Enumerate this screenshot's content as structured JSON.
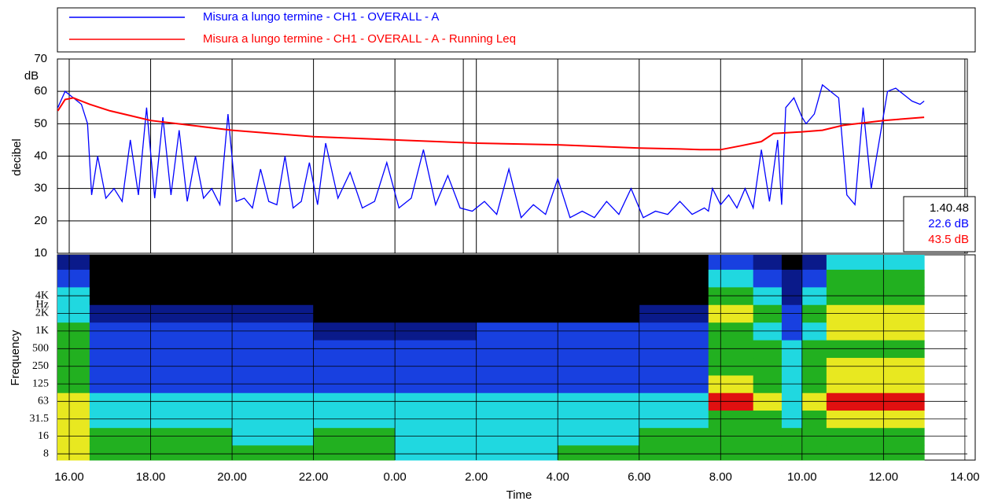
{
  "chart_data": [
    {
      "type": "line",
      "y_label": "decibel",
      "y_unit": "dB",
      "xlim": [
        -0.29,
        22.06
      ],
      "ylim": [
        10,
        70
      ],
      "yticks": [
        10,
        20,
        30,
        40,
        50,
        60,
        70
      ],
      "grid": true,
      "series": [
        {
          "name": "Misura a lungo termine - CH1 - OVERALL - A",
          "color": "#0000ff",
          "x": [
            -0.28,
            -0.1,
            0.1,
            0.3,
            0.45,
            0.55,
            0.7,
            0.9,
            1.1,
            1.3,
            1.5,
            1.7,
            1.9,
            2.1,
            2.3,
            2.5,
            2.7,
            2.9,
            3.1,
            3.3,
            3.5,
            3.7,
            3.9,
            4.1,
            4.3,
            4.5,
            4.7,
            4.9,
            5.1,
            5.3,
            5.5,
            5.7,
            5.9,
            6.1,
            6.3,
            6.6,
            6.9,
            7.2,
            7.5,
            7.8,
            8.1,
            8.4,
            8.7,
            9.0,
            9.3,
            9.6,
            9.9,
            10.2,
            10.5,
            10.8,
            11.1,
            11.4,
            11.7,
            12.0,
            12.3,
            12.6,
            12.9,
            13.2,
            13.5,
            13.8,
            14.1,
            14.4,
            14.7,
            15.0,
            15.3,
            15.6,
            15.7,
            15.8,
            16.0,
            16.2,
            16.4,
            16.6,
            16.8,
            17.0,
            17.2,
            17.4,
            17.5,
            17.6,
            17.8,
            18.0,
            18.1,
            18.3,
            18.5,
            18.7,
            18.9,
            19.1,
            19.3,
            19.5,
            19.7,
            19.9,
            20.1,
            20.3,
            20.5,
            20.7,
            20.9,
            21.0
          ],
          "values": [
            55,
            60,
            58,
            56,
            50,
            28,
            40,
            27,
            30,
            26,
            45,
            28,
            55,
            27,
            52,
            28,
            48,
            26,
            40,
            27,
            30,
            25,
            53,
            26,
            27,
            24,
            36,
            26,
            25,
            40,
            24,
            26,
            38,
            25,
            44,
            27,
            35,
            24,
            26,
            38,
            24,
            27,
            42,
            25,
            34,
            24,
            23,
            26,
            22,
            36,
            21,
            25,
            22,
            33,
            21,
            23,
            21,
            26,
            22,
            30,
            21,
            23,
            22,
            26,
            22,
            24,
            23,
            30,
            25,
            28,
            24,
            30,
            24,
            42,
            26,
            45,
            25,
            55,
            58,
            52,
            50,
            53,
            62,
            60,
            58,
            28,
            25,
            55,
            30,
            45,
            60,
            61,
            59,
            57,
            56,
            57
          ]
        },
        {
          "name": "Misura a lungo termine - CH1 - OVERALL - A - Running Leq",
          "color": "#ff0000",
          "x": [
            -0.28,
            -0.1,
            0.1,
            0.3,
            0.5,
            1,
            1.5,
            2,
            3,
            4,
            6,
            8,
            10,
            12,
            14,
            15,
            15.5,
            16,
            16.5,
            17,
            17.3,
            18,
            18.5,
            19,
            20,
            21
          ],
          "values": [
            54,
            57.5,
            58,
            57,
            56,
            54,
            52.5,
            51,
            49.5,
            48,
            46,
            45,
            44,
            43.5,
            42.5,
            42.2,
            42,
            42,
            43.2,
            44.5,
            47,
            47.5,
            48,
            49.5,
            51,
            52
          ]
        }
      ],
      "cursor": {
        "label": "1.40.48",
        "x": 9.68,
        "values": [
          22.6,
          43.5
        ],
        "value_labels": [
          "22.6 dB",
          "43.5 dB"
        ]
      }
    },
    {
      "type": "spectrogram",
      "x_label": "Time",
      "y_label": "Frequency",
      "y_unit": "Hz",
      "xlim": [
        -0.29,
        22.06
      ],
      "xticks": [
        {
          "value": 0,
          "label": "16.00"
        },
        {
          "value": 2,
          "label": "18.00"
        },
        {
          "value": 4,
          "label": "20.00"
        },
        {
          "value": 6,
          "label": "22.00"
        },
        {
          "value": 8,
          "label": "0.00"
        },
        {
          "value": 10,
          "label": "2.00"
        },
        {
          "value": 12,
          "label": "4.00"
        },
        {
          "value": 14,
          "label": "6.00"
        },
        {
          "value": 16,
          "label": "8.00"
        },
        {
          "value": 18,
          "label": "10.00"
        },
        {
          "value": 20,
          "label": "12.00"
        },
        {
          "value": 22,
          "label": "14.00"
        }
      ],
      "ylim": [
        6.26,
        20000
      ],
      "log_y": true,
      "yticks": [
        {
          "value": 4000,
          "label": "4K"
        },
        {
          "value": 2000,
          "label": "2K"
        },
        {
          "value": 1000,
          "label": "1K"
        },
        500,
        250,
        125,
        63,
        31.5,
        16,
        8
      ],
      "colors": [
        "#000000",
        "#0a1a8a",
        "#1840e0",
        "#20d8e0",
        "#22b020",
        "#e8e820",
        "#e01010"
      ],
      "x_edges": [
        -0.3,
        0.5,
        2,
        4,
        6,
        8,
        10,
        12,
        14,
        15.7,
        16.8,
        17.5,
        18,
        18.6,
        21.0
      ],
      "bands": [
        8,
        16,
        31.5,
        63,
        125,
        250,
        500,
        1000,
        2000,
        4000,
        8000,
        16000
      ],
      "levels": [
        [
          5,
          4,
          4,
          4,
          4,
          3,
          3,
          4,
          4,
          4,
          4,
          4,
          4,
          4
        ],
        [
          5,
          4,
          4,
          3,
          4,
          3,
          3,
          3,
          4,
          4,
          4,
          4,
          4,
          4
        ],
        [
          5,
          3,
          3,
          3,
          3,
          3,
          3,
          3,
          3,
          4,
          4,
          3,
          4,
          5
        ],
        [
          5,
          3,
          3,
          3,
          3,
          3,
          3,
          3,
          3,
          6,
          5,
          3,
          5,
          6
        ],
        [
          4,
          2,
          2,
          2,
          2,
          2,
          2,
          2,
          2,
          5,
          4,
          3,
          4,
          5
        ],
        [
          4,
          2,
          2,
          2,
          2,
          2,
          2,
          2,
          2,
          4,
          4,
          3,
          4,
          5
        ],
        [
          4,
          2,
          2,
          2,
          2,
          2,
          2,
          2,
          2,
          4,
          4,
          3,
          4,
          4
        ],
        [
          4,
          2,
          2,
          2,
          1,
          1,
          2,
          2,
          2,
          4,
          3,
          2,
          3,
          5
        ],
        [
          3,
          1,
          1,
          1,
          0,
          0,
          0,
          0,
          1,
          5,
          4,
          2,
          4,
          5
        ],
        [
          3,
          0,
          0,
          0,
          0,
          0,
          0,
          0,
          0,
          4,
          3,
          1,
          3,
          4
        ],
        [
          2,
          0,
          0,
          0,
          0,
          0,
          0,
          0,
          0,
          3,
          2,
          1,
          2,
          4
        ],
        [
          1,
          0,
          0,
          0,
          0,
          0,
          0,
          0,
          0,
          2,
          1,
          0,
          1,
          3
        ]
      ]
    }
  ]
}
